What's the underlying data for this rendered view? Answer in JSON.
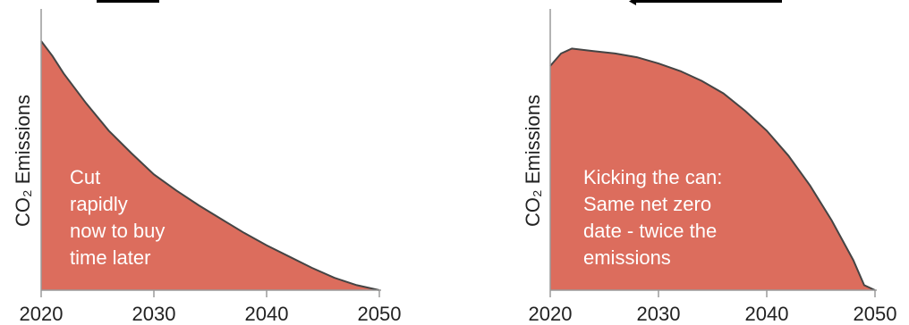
{
  "colors": {
    "area_fill": "#dc6d5d",
    "area_edge": "#444444",
    "axis": "#9a9a9a",
    "text": "#222222",
    "annotation_text": "#ffffff"
  },
  "chart_data": [
    {
      "type": "area",
      "title": "",
      "xlabel": "",
      "ylabel": "CO₂ Emissions",
      "xlim": [
        2020,
        2050
      ],
      "ylim": [
        0,
        100
      ],
      "xticks": [
        "2020",
        "2030",
        "2040",
        "2050"
      ],
      "grid": false,
      "series": [
        {
          "x": [
            2020,
            2021,
            2022,
            2024,
            2026,
            2028,
            2030,
            2032,
            2034,
            2036,
            2038,
            2040,
            2042,
            2044,
            2046,
            2048,
            2050
          ],
          "values": [
            100,
            94,
            87,
            75,
            64,
            55,
            46.5,
            40,
            34,
            28.5,
            23,
            18,
            13.5,
            9,
            5,
            2,
            0
          ]
        }
      ],
      "annotation": [
        "Cut",
        "rapidly",
        "now to buy",
        "time later"
      ]
    },
    {
      "type": "area",
      "title": "",
      "xlabel": "",
      "ylabel": "CO₂ Emissions",
      "xlim": [
        2020,
        2050
      ],
      "ylim": [
        0,
        100
      ],
      "xticks": [
        "2020",
        "2030",
        "2040",
        "2050"
      ],
      "grid": false,
      "series": [
        {
          "x": [
            2020,
            2021,
            2022,
            2024,
            2026,
            2028,
            2030,
            2032,
            2034,
            2036,
            2038,
            2040,
            2042,
            2044,
            2046,
            2048,
            2049,
            2050
          ],
          "values": [
            90,
            95,
            97,
            96,
            95,
            93.5,
            91,
            88,
            84,
            79,
            72,
            64,
            54,
            42,
            28,
            12,
            2,
            0
          ]
        }
      ],
      "annotation": [
        "Kicking the can:",
        "Same net zero",
        "date - twice the",
        "emissions"
      ]
    }
  ]
}
